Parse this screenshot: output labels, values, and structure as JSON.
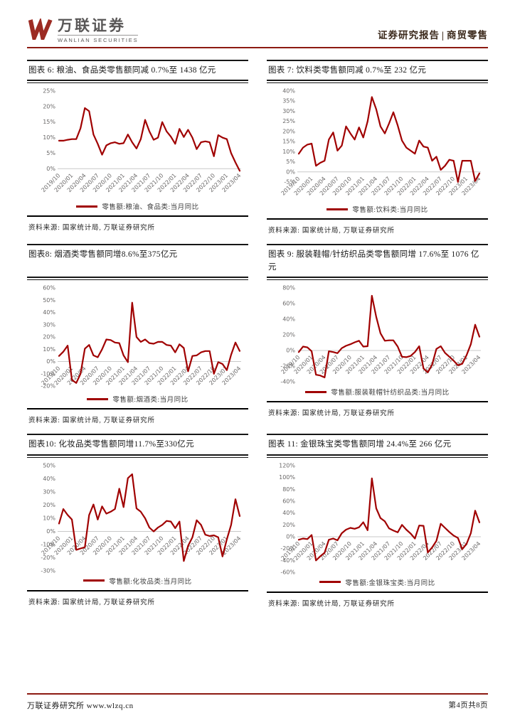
{
  "header": {
    "brand_cn": "万联证券",
    "brand_en": "WANLIAN SECURITIES",
    "report_type": "证券研究报告",
    "divider": "|",
    "sector": "商贸零售"
  },
  "footer": {
    "left": "万联证券研究所  www.wlzq.cn",
    "right": "第4页共8页"
  },
  "colors": {
    "line": "#A00000",
    "accent_rule": "#8C1A11",
    "logo_red": "#9C2B23",
    "gray_text": "#595757"
  },
  "x_labels_shared": [
    "2019/10",
    "2020/01",
    "2020/04",
    "2020/07",
    "2020/10",
    "2021/01",
    "2021/04",
    "2021/07",
    "2021/10",
    "2022/01",
    "2022/04",
    "2022/07",
    "2022/10",
    "2023/01",
    "2023/04"
  ],
  "chart_data": [
    {
      "type": "line",
      "title": "图表 6: 粮油、食品类零售额同减 0.7%至 1438 亿元",
      "legend": "零售额:粮油、食品类:当月同比",
      "source": "资料来源: 国家统计局, 万联证券研究所",
      "unit": "%",
      "ylim": [
        -2,
        25
      ],
      "ytick_step": 5,
      "x_labels": [
        "2019/10",
        "2020/01",
        "2020/04",
        "2020/07",
        "2020/10",
        "2021/01",
        "2021/04",
        "2021/07",
        "2021/10",
        "2022/01",
        "2022/04",
        "2022/07",
        "2022/10",
        "2023/01",
        "2023/04"
      ],
      "values": [
        9,
        9,
        9.3,
        9.5,
        9.5,
        13,
        19.5,
        18.5,
        11,
        8,
        4.5,
        7.5,
        8.2,
        8.5,
        8,
        8.2,
        11,
        8.5,
        6.5,
        9.5,
        15.7,
        12,
        9.3,
        10,
        15,
        12,
        10.3,
        8,
        12.8,
        10.2,
        12.5,
        10,
        6.3,
        8.5,
        8.8,
        8.5,
        4,
        10.8,
        10,
        9.5,
        5,
        2,
        -0.7
      ]
    },
    {
      "type": "line",
      "title": "图表 7: 饮料类零售额同减 0.7%至 232 亿元",
      "legend": "零售额:饮料类:当月同比",
      "source": "资料来源: 国家统计局, 万联证券研究所",
      "unit": "%",
      "ylim": [
        -5,
        40
      ],
      "ytick_step": 5,
      "x_labels": [
        "2019/10",
        "2020/01",
        "2020/04",
        "2020/07",
        "2020/10",
        "2021/01",
        "2021/04",
        "2021/07",
        "2021/10",
        "2022/01",
        "2022/04",
        "2022/07",
        "2022/10",
        "2023/01",
        "2023/04"
      ],
      "values": [
        9,
        12,
        13.5,
        14,
        3,
        4.5,
        5.5,
        16,
        19.5,
        10.5,
        13,
        22.5,
        19,
        16,
        22,
        17,
        25,
        37,
        31,
        22.5,
        19,
        24,
        29.5,
        23,
        15.5,
        12,
        10.5,
        9,
        15.5,
        12.5,
        12,
        5.5,
        7.5,
        1,
        3,
        6,
        5.5,
        -5,
        5.5,
        5.5,
        5.5,
        -4.5,
        -0.7
      ]
    },
    {
      "type": "line",
      "title": "图表8: 烟酒类零售额同增8.6%至375亿元",
      "legend": "零售额:烟酒类:当月同比",
      "source": "资料来源: 国家统计局, 万联证券研究所",
      "unit": "%",
      "ylim": [
        -20,
        60
      ],
      "ytick_step": 10,
      "x_labels": [
        "2019/10",
        "2020/01",
        "2020/04",
        "2020/07",
        "2020/10",
        "2021/01",
        "2021/04",
        "2021/07",
        "2021/10",
        "2022/01",
        "2022/04",
        "2022/07",
        "2022/10",
        "2023/01",
        "2023/04"
      ],
      "values": [
        4.5,
        8,
        13,
        -15,
        -17.5,
        -10,
        10.5,
        13.5,
        5,
        3.5,
        10,
        18,
        17.5,
        15.5,
        15,
        5,
        -0.5,
        48,
        20,
        16,
        18,
        15,
        14.5,
        16,
        16,
        13.5,
        13,
        7.5,
        14,
        11,
        -8,
        4.5,
        5,
        7.5,
        8.5,
        8.5,
        -10,
        -0.5,
        -2,
        -7,
        5.5,
        15.5,
        8.6
      ]
    },
    {
      "type": "line",
      "title": "图表 9: 服装鞋帽/针纺织品类零售额同增 17.6%至 1076 亿元",
      "legend": "零售额:服装鞋帽针纺织品类:当月同比",
      "source": "资料来源: 国家统计局, 万联证券研究所",
      "unit": "%",
      "ylim": [
        -40,
        80
      ],
      "ytick_step": 20,
      "x_labels": [
        "2019/10",
        "2020/01",
        "2020/04",
        "2020/07",
        "2020/10",
        "2021/01",
        "2021/04",
        "2021/07",
        "2021/10",
        "2022/01",
        "2022/04",
        "2022/07",
        "2022/10",
        "2023/01",
        "2023/04"
      ],
      "values": [
        -2,
        5,
        4,
        -1,
        -31,
        -32,
        -34.5,
        -1,
        -2,
        -3.5,
        3,
        6,
        8,
        10.5,
        12.5,
        5,
        5.5,
        70,
        43,
        22,
        12.5,
        13,
        13,
        5,
        -8,
        -8.5,
        -7,
        -2,
        5.5,
        -23,
        -28,
        -18,
        2,
        5.5,
        -3,
        -8,
        -13,
        -19,
        -17,
        -6,
        8,
        33,
        17.6
      ]
    },
    {
      "type": "line",
      "title": "图表10: 化妆品类零售额同增11.7%至330亿元",
      "legend": "零售额:化妆品类:当月同比",
      "source": "资料来源: 国家统计局, 万联证券研究所",
      "unit": "%",
      "ylim": [
        -30,
        50
      ],
      "ytick_step": 10,
      "x_labels": [
        "2019/10",
        "2020/01",
        "2020/04",
        "2020/07",
        "2020/10",
        "2021/01",
        "2021/04",
        "2021/07",
        "2021/10",
        "2022/01",
        "2022/04",
        "2022/07",
        "2022/10",
        "2023/01",
        "2023/04"
      ],
      "values": [
        6,
        17,
        12.5,
        9,
        -14,
        -13,
        -12,
        12.5,
        20.5,
        9,
        19,
        13.5,
        15,
        17,
        32.5,
        18.5,
        40.5,
        43.5,
        17.5,
        15,
        10,
        3,
        0,
        3,
        5,
        8,
        7.5,
        2.5,
        7.5,
        -22.5,
        -11,
        -4.5,
        8.5,
        5,
        -2.5,
        -3.5,
        -3,
        -4.5,
        -19,
        -6,
        5,
        24.5,
        11.7
      ]
    },
    {
      "type": "line",
      "title": "图表 11: 金银珠宝类零售额同增 24.4%至 266 亿元",
      "legend": "零售额:金银珠宝类:当月同比",
      "source": "资料来源: 国家统计局, 万联证券研究所",
      "unit": "%",
      "ylim": [
        -60,
        120
      ],
      "ytick_step": 20,
      "x_labels": [
        "2019/10",
        "2020/01",
        "2020/04",
        "2020/07",
        "2020/10",
        "2021/01",
        "2021/04",
        "2021/07",
        "2021/10",
        "2022/01",
        "2022/04",
        "2022/07",
        "2022/10",
        "2023/01",
        "2023/04"
      ],
      "values": [
        -5,
        -3,
        -4,
        3,
        -40,
        -33,
        -27,
        -5,
        -3,
        -6,
        6,
        12,
        15,
        13.5,
        16,
        24.5,
        11,
        98.5,
        48,
        31.5,
        26,
        14,
        10.5,
        7.5,
        20,
        12,
        5.5,
        -3,
        19,
        18.5,
        -26.5,
        -18,
        -7,
        22,
        15,
        8,
        2,
        -2,
        -21,
        -12,
        6,
        44,
        24.4
      ]
    }
  ]
}
